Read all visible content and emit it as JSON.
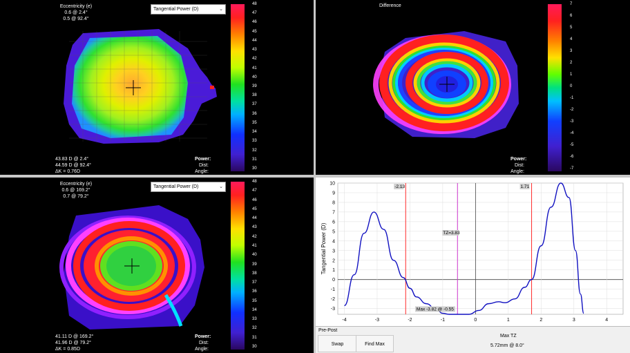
{
  "top_left": {
    "ecc_title": "Eccentricity (e)",
    "ecc_line1": "0.6 @ 2.4°",
    "ecc_line2": "0.5 @ 92.4°",
    "dropdown": "Tangential Power (D)",
    "sim1": "43.83 D @ 2.4°",
    "sim2": "44.59 D @ 92.4°",
    "delta_k": "ΔK = 0.76D",
    "power_label": "Power:",
    "dist_label": "Dist:",
    "angle_label": "Angle:"
  },
  "top_right": {
    "title": "Difference",
    "power_label": "Power:",
    "dist_label": "Dist:",
    "angle_label": "Angle:"
  },
  "bottom_left": {
    "ecc_title": "Eccentricity (e)",
    "ecc_line1": "0.6 @ 169.2°",
    "ecc_line2": "0.7 @ 79.2°",
    "dropdown": "Tangential Power (D)",
    "sim1": "41.11 D @ 169.2°",
    "sim2": "41.96 D @ 79.2°",
    "delta_k": "ΔK = 0.85D",
    "power_label": "Power:",
    "dist_label": "Dist:",
    "angle_label": "Angle:"
  },
  "power_scale": [
    "48",
    "47",
    "46",
    "45",
    "44",
    "43",
    "42",
    "41",
    "40",
    "39",
    "38",
    "37",
    "36",
    "35",
    "34",
    "33",
    "32",
    "31",
    "30"
  ],
  "diff_scale": [
    "7",
    "6",
    "5",
    "4",
    "3",
    "2",
    "1",
    "0",
    "-1",
    "-2",
    "-3",
    "-4",
    "-5",
    "-6",
    "-7"
  ],
  "colors": {
    "accent_red": "#ff2a2a",
    "tz_magenta": "#cc33cc",
    "curve_blue": "#1010c0"
  },
  "chart_data": {
    "type": "line",
    "ylabel": "Tangential Power (D)",
    "xlim": [
      -4.2,
      4.5
    ],
    "ylim": [
      -3.6,
      10
    ],
    "x_ticks": [
      -4,
      -3,
      -2,
      -1,
      0,
      1,
      2,
      3,
      4
    ],
    "y_ticks": [
      10,
      9,
      8,
      7,
      6,
      5,
      4,
      3,
      2,
      1,
      0,
      -1,
      -2,
      -3
    ],
    "series": [
      {
        "x": [
          -4.0,
          -3.7,
          -3.4,
          -3.1,
          -2.8,
          -2.5,
          -2.2,
          -2.0,
          -1.8,
          -1.5,
          -1.2,
          -1.0,
          -0.8,
          -0.5,
          -0.2,
          0.1,
          0.4,
          0.7,
          0.9,
          1.2,
          1.5,
          1.71,
          2.0,
          2.3,
          2.6,
          2.85,
          3.05,
          3.2,
          3.3
        ],
        "values": [
          -2.7,
          0.5,
          4.8,
          7.0,
          5.2,
          2.0,
          0.2,
          -0.9,
          -1.8,
          -2.5,
          -3.1,
          -3.5,
          -3.75,
          -3.82,
          -3.6,
          -3.2,
          -2.5,
          -2.3,
          -2.4,
          -2.0,
          -0.8,
          0.0,
          3.5,
          7.5,
          10.0,
          8.5,
          3.0,
          -1.5,
          -3.5
        ]
      }
    ],
    "vlines": [
      {
        "x": -2.13,
        "label": "-2.13",
        "color": "#ff2a2a"
      },
      {
        "x": 1.71,
        "label": "1.71",
        "color": "#ff2a2a"
      },
      {
        "x": -0.55,
        "label": "TZ=3.83",
        "color": "#cc33cc"
      }
    ],
    "annotation": "Max -3.82 @ -0.55"
  },
  "prepost": {
    "label": "Pre-Post",
    "swap": "Swap",
    "find_max": "Find Max",
    "max_tz_title": "Max TZ",
    "max_tz_value": "5.72mm @ 8.0°"
  }
}
